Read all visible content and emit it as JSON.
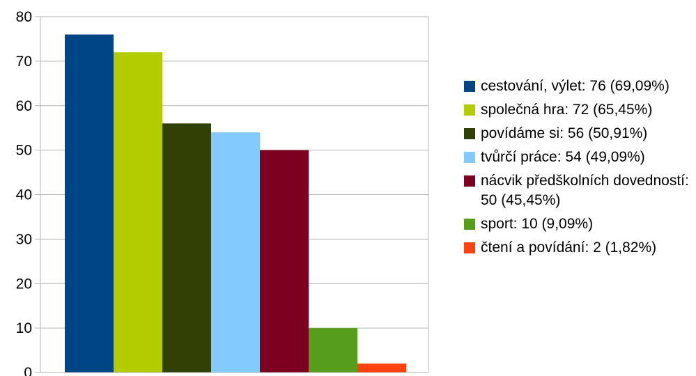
{
  "chart_data": {
    "type": "bar",
    "categories": [
      "cestování, výlet",
      "společná hra",
      "povídáme si",
      "tvůrčí práce",
      "nácvik předškolních dovedností",
      "sport",
      "čtení a povídání"
    ],
    "values": [
      76,
      72,
      56,
      54,
      50,
      10,
      2
    ],
    "colors": [
      "#004586",
      "#b3cc00",
      "#314004",
      "#83caff",
      "#7e0021",
      "#579d1c",
      "#ff420e"
    ],
    "ylim": [
      0,
      80
    ],
    "yticks": [
      "0",
      "10",
      "20",
      "30",
      "40",
      "50",
      "60",
      "70",
      "80"
    ],
    "grid": true,
    "legend_position": "right",
    "legend": [
      "cestování, výlet: 76 (69,09%)",
      "společná hra: 72 (65,45%)",
      "povídáme si: 56 (50,91%)",
      "tvůrčí práce: 54 (49,09%)",
      "nácvik předškolních dovedností: 50 (45,45%)",
      "sport: 10 (9,09%)",
      "čtení a povídání: 2 (1,82%)"
    ]
  }
}
